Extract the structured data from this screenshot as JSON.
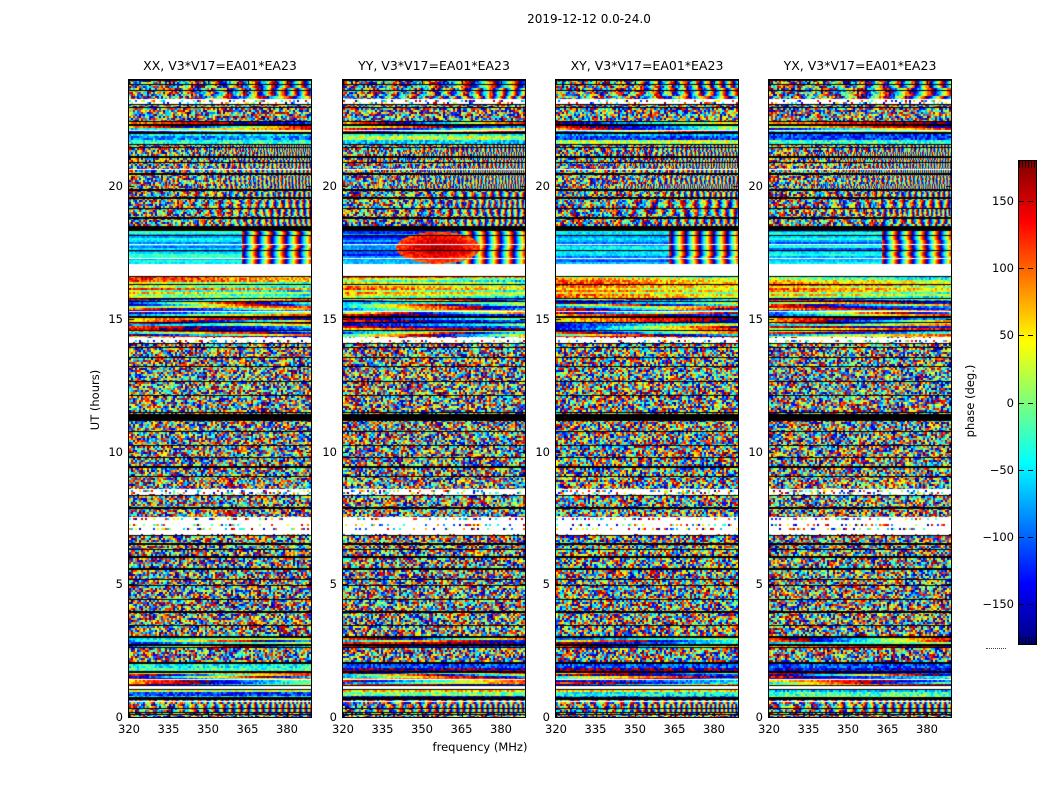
{
  "figure": {
    "title": "2019-12-12 0.0-24.0",
    "xlabel": "frequency (MHz)",
    "ylabel": "UT (hours)"
  },
  "chart_data": {
    "type": "heatmap",
    "title": "2019-12-12 0.0-24.0",
    "subtitle_note": "visibility phase vs frequency and time, baseline V3*V17=EA01*EA23, four polarization products",
    "xlabel": "frequency (MHz)",
    "ylabel": "UT (hours)",
    "xlim": [
      320,
      390
    ],
    "ylim": [
      0,
      24
    ],
    "x_ticks": [
      320,
      335,
      350,
      365,
      380
    ],
    "y_ticks": [
      0,
      5,
      10,
      15,
      20
    ],
    "grid": false,
    "panels": [
      {
        "pol": "XX",
        "title": "XX, V3*V17=EA01*EA23"
      },
      {
        "pol": "YY",
        "title": "YY, V3*V17=EA01*EA23"
      },
      {
        "pol": "XY",
        "title": "XY, V3*V17=EA01*EA23"
      },
      {
        "pol": "YX",
        "title": "YX, V3*V17=EA01*EA23"
      }
    ],
    "colorbar": {
      "label": "phase (deg.)",
      "colormap": "jet",
      "range": [
        -180,
        180
      ],
      "ticks": [
        150,
        100,
        50,
        0,
        -50,
        -100,
        -150
      ],
      "tick_labels": [
        "150",
        "100",
        "50",
        "0",
        "−50",
        "−100",
        "−150"
      ]
    },
    "time_bands": [
      {
        "h0": 0.0,
        "h1": 0.18,
        "type": "speckle"
      },
      {
        "h0": 0.18,
        "h1": 0.75,
        "type": "fringes",
        "f": 13,
        "curve": 9,
        "nz": 0.75
      },
      {
        "h0": 0.75,
        "h1": 1.05,
        "type": "hstripes",
        "bias": -40
      },
      {
        "h0": 1.05,
        "h1": 1.18,
        "type": "gap"
      },
      {
        "h0": 1.18,
        "h1": 1.75,
        "type": "stretched"
      },
      {
        "h0": 1.75,
        "h1": 2.05,
        "type": "hstripes",
        "bias": -80
      },
      {
        "h0": 2.05,
        "h1": 2.65,
        "type": "speckle"
      },
      {
        "h0": 2.65,
        "h1": 3.05,
        "type": "stretched"
      },
      {
        "h0": 3.05,
        "h1": 6.85,
        "type": "speckle"
      },
      {
        "h0": 6.85,
        "h1": 7.55,
        "type": "sparse"
      },
      {
        "h0": 7.55,
        "h1": 8.35,
        "type": "speckle"
      },
      {
        "h0": 8.35,
        "h1": 8.6,
        "type": "sparse"
      },
      {
        "h0": 8.6,
        "h1": 11.2,
        "type": "speckle"
      },
      {
        "h0": 11.2,
        "h1": 11.4,
        "type": "black"
      },
      {
        "h0": 11.4,
        "h1": 14.1,
        "type": "speckle"
      },
      {
        "h0": 14.1,
        "h1": 14.3,
        "type": "sparse"
      },
      {
        "h0": 14.3,
        "h1": 15.1,
        "type": "stretched"
      },
      {
        "h0": 15.1,
        "h1": 15.8,
        "type": "stretched"
      },
      {
        "h0": 15.8,
        "h1": 16.6,
        "type": "warm"
      },
      {
        "h0": 16.6,
        "h1": 17.05,
        "type": "gap"
      },
      {
        "h0": 17.05,
        "h1": 18.35,
        "type": "smooth"
      },
      {
        "h0": 18.35,
        "h1": 18.5,
        "type": "black"
      },
      {
        "h0": 18.5,
        "h1": 19.9,
        "type": "fringes",
        "f": 9,
        "curve": 12,
        "nz": 1.0
      },
      {
        "h0": 19.9,
        "h1": 21.6,
        "type": "fringes",
        "f": 17,
        "curve": 18,
        "nz": 1.05
      },
      {
        "h0": 21.6,
        "h1": 22.0,
        "type": "hstripes",
        "bias": -55
      },
      {
        "h0": 22.0,
        "h1": 22.45,
        "type": "stretched"
      },
      {
        "h0": 22.45,
        "h1": 23.1,
        "type": "speckle"
      },
      {
        "h0": 23.1,
        "h1": 23.3,
        "type": "sparse"
      },
      {
        "h0": 23.3,
        "h1": 24.0,
        "type": "fringes",
        "f": 7,
        "curve": 6,
        "nz": 0.9
      }
    ],
    "white_lines_hours": [
      0.62,
      1.45,
      15.28,
      17.3,
      17.82,
      20.65,
      22.1
    ],
    "smooth_left_bias_by_panel": [
      -60,
      -105,
      -75,
      -70
    ],
    "yy_red_blob": {
      "panel": "YY",
      "hour": 17.7,
      "freq_mhz": 356,
      "phase": 155
    }
  }
}
